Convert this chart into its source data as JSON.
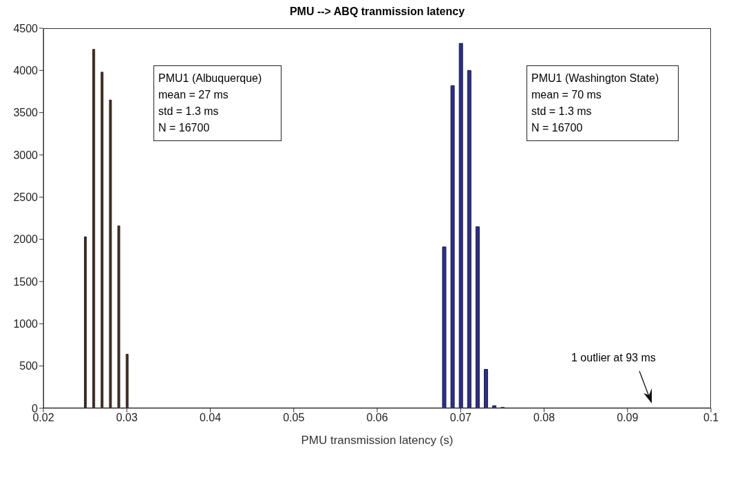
{
  "chart_data": {
    "type": "bar",
    "title": "PMU --> ABQ tranmission latency",
    "xlabel": "PMU transmission latency (s)",
    "series": [
      {
        "color": "#3d2b22",
        "x": [
          0.025,
          0.026,
          0.027,
          0.028,
          0.029,
          0.03
        ],
        "values": [
          2030,
          4250,
          3980,
          3650,
          2160,
          640
        ]
      },
      {
        "color": "#2e2e8a",
        "x": [
          0.068,
          0.069,
          0.07,
          0.071,
          0.072,
          0.073,
          0.074,
          0.075
        ],
        "values": [
          1910,
          3820,
          4320,
          4000,
          2150,
          460,
          30,
          10
        ]
      }
    ],
    "xlim": [
      0.02,
      0.1
    ],
    "xticks": [
      0.02,
      0.03,
      0.04,
      0.05,
      0.06,
      0.07,
      0.08,
      0.09,
      0.1
    ],
    "ylim": [
      0,
      4500
    ],
    "yticks": [
      0,
      500,
      1000,
      1500,
      2000,
      2500,
      3000,
      3500,
      4000,
      4500
    ],
    "annotations": [
      "PMU1 (Albuquerque)\nmean = 27 ms\nstd = 1.3 ms\nN = 16700",
      "PMU1 (Washington State)\nmean = 70 ms\nstd = 1.3 ms\nN = 16700",
      "1 outlier at 93 ms"
    ],
    "grid": false,
    "legend": false
  }
}
